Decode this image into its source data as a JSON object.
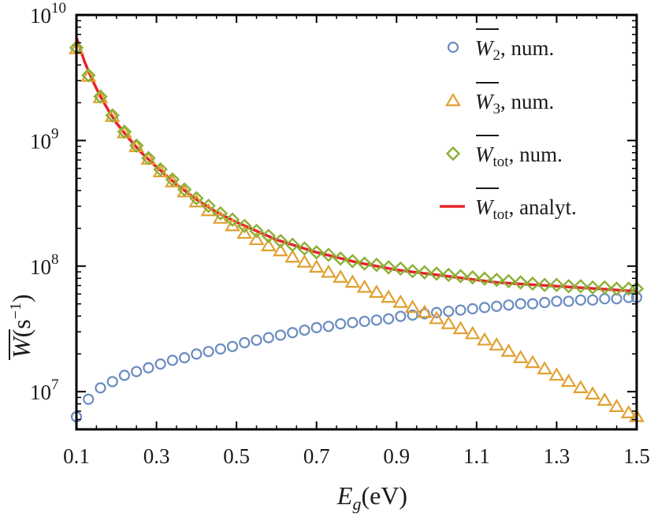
{
  "chart_data": {
    "type": "scatter",
    "xlabel": {
      "main": "E",
      "sub": "g",
      "unit": "(eV)"
    },
    "ylabel": {
      "main": "W",
      "unit": "(s",
      "exp": "−1",
      "close": ")"
    },
    "xlim": [
      0.1,
      1.5
    ],
    "ylim_log10": [
      6.7,
      10
    ],
    "x_ticks": [
      0.1,
      0.3,
      0.5,
      0.7,
      0.9,
      1.1,
      1.3,
      1.5
    ],
    "x_tick_labels": [
      "0.1",
      "0.3",
      "0.5",
      "0.7",
      "0.9",
      "1.1",
      "1.3",
      "1.5"
    ],
    "y_ticks": [
      {
        "base": "10",
        "exp": "7",
        "value": 7
      },
      {
        "base": "10",
        "exp": "8",
        "value": 8
      },
      {
        "base": "10",
        "exp": "9",
        "value": 9
      },
      {
        "base": "10",
        "exp": "10",
        "value": 10
      }
    ],
    "grid": false,
    "legend_position": "top-right",
    "series": [
      {
        "name": "W2_num",
        "legend": {
          "symbol": "W",
          "sub": "2",
          "text": ", num."
        },
        "marker": "circle",
        "color": "#6b8cbf",
        "x": [
          0.1,
          0.13,
          0.16,
          0.19,
          0.22,
          0.25,
          0.28,
          0.31,
          0.34,
          0.37,
          0.4,
          0.43,
          0.46,
          0.49,
          0.52,
          0.55,
          0.58,
          0.61,
          0.64,
          0.67,
          0.7,
          0.73,
          0.76,
          0.79,
          0.82,
          0.85,
          0.88,
          0.91,
          0.94,
          0.97,
          1.0,
          1.03,
          1.06,
          1.09,
          1.12,
          1.15,
          1.18,
          1.21,
          1.24,
          1.27,
          1.3,
          1.33,
          1.36,
          1.39,
          1.42,
          1.45,
          1.48,
          1.5
        ],
        "log10_y": [
          6.8,
          6.94,
          7.03,
          7.08,
          7.13,
          7.16,
          7.19,
          7.22,
          7.25,
          7.27,
          7.3,
          7.32,
          7.34,
          7.36,
          7.39,
          7.41,
          7.43,
          7.45,
          7.47,
          7.49,
          7.51,
          7.52,
          7.54,
          7.55,
          7.56,
          7.57,
          7.58,
          7.6,
          7.61,
          7.62,
          7.63,
          7.64,
          7.65,
          7.66,
          7.67,
          7.68,
          7.69,
          7.7,
          7.7,
          7.71,
          7.72,
          7.72,
          7.73,
          7.73,
          7.74,
          7.74,
          7.75,
          7.75
        ]
      },
      {
        "name": "W3_num",
        "legend": {
          "symbol": "W",
          "sub": "3",
          "text": ", num."
        },
        "marker": "triangle",
        "color": "#e0a030",
        "x": [
          0.1,
          0.13,
          0.16,
          0.19,
          0.22,
          0.25,
          0.28,
          0.31,
          0.34,
          0.37,
          0.4,
          0.43,
          0.46,
          0.49,
          0.52,
          0.55,
          0.58,
          0.61,
          0.64,
          0.67,
          0.7,
          0.73,
          0.76,
          0.79,
          0.82,
          0.85,
          0.88,
          0.91,
          0.94,
          0.97,
          1.0,
          1.03,
          1.06,
          1.09,
          1.12,
          1.15,
          1.18,
          1.21,
          1.24,
          1.27,
          1.3,
          1.33,
          1.36,
          1.39,
          1.42,
          1.45,
          1.48,
          1.5
        ],
        "log10_y": [
          9.73,
          9.51,
          9.34,
          9.19,
          9.06,
          8.95,
          8.85,
          8.75,
          8.67,
          8.59,
          8.51,
          8.44,
          8.38,
          8.32,
          8.26,
          8.21,
          8.16,
          8.12,
          8.07,
          8.03,
          7.99,
          7.95,
          7.91,
          7.87,
          7.83,
          7.79,
          7.75,
          7.71,
          7.67,
          7.63,
          7.58,
          7.54,
          7.5,
          7.46,
          7.41,
          7.37,
          7.32,
          7.27,
          7.23,
          7.18,
          7.13,
          7.08,
          7.03,
          6.98,
          6.93,
          6.88,
          6.83,
          6.8
        ]
      },
      {
        "name": "Wtot_num",
        "legend": {
          "symbol": "W",
          "sub": "tot",
          "text": ", num."
        },
        "marker": "diamond",
        "color": "#8bb034",
        "x": [
          0.1,
          0.13,
          0.16,
          0.19,
          0.22,
          0.25,
          0.28,
          0.31,
          0.34,
          0.37,
          0.4,
          0.43,
          0.46,
          0.49,
          0.52,
          0.55,
          0.58,
          0.61,
          0.64,
          0.67,
          0.7,
          0.73,
          0.76,
          0.79,
          0.82,
          0.85,
          0.88,
          0.91,
          0.94,
          0.97,
          1.0,
          1.03,
          1.06,
          1.09,
          1.12,
          1.15,
          1.18,
          1.21,
          1.24,
          1.27,
          1.3,
          1.33,
          1.36,
          1.39,
          1.42,
          1.45,
          1.48,
          1.5
        ],
        "log10_y": [
          9.74,
          9.52,
          9.35,
          9.2,
          9.07,
          8.96,
          8.86,
          8.77,
          8.69,
          8.61,
          8.54,
          8.48,
          8.42,
          8.37,
          8.32,
          8.28,
          8.24,
          8.2,
          8.17,
          8.14,
          8.11,
          8.09,
          8.06,
          8.04,
          8.02,
          8.01,
          7.99,
          7.98,
          7.96,
          7.95,
          7.94,
          7.93,
          7.92,
          7.91,
          7.9,
          7.89,
          7.88,
          7.87,
          7.86,
          7.85,
          7.85,
          7.84,
          7.84,
          7.83,
          7.83,
          7.82,
          7.82,
          7.82
        ]
      },
      {
        "name": "Wtot_analyt",
        "legend": {
          "symbol": "W",
          "sub": "tot",
          "text": ", analyt."
        },
        "marker": "line",
        "color": "#e8232a",
        "x": [
          0.1,
          0.12,
          0.14,
          0.16,
          0.18,
          0.2,
          0.23,
          0.26,
          0.3,
          0.35,
          0.4,
          0.45,
          0.5,
          0.55,
          0.6,
          0.65,
          0.7,
          0.75,
          0.8,
          0.85,
          0.9,
          0.95,
          1.0,
          1.05,
          1.1,
          1.15,
          1.2,
          1.25,
          1.3,
          1.35,
          1.4,
          1.45,
          1.5
        ],
        "log10_y": [
          9.82,
          9.63,
          9.48,
          9.35,
          9.24,
          9.14,
          9.02,
          8.91,
          8.79,
          8.65,
          8.53,
          8.43,
          8.35,
          8.28,
          8.21,
          8.16,
          8.11,
          8.07,
          8.03,
          8.0,
          7.97,
          7.95,
          7.93,
          7.91,
          7.89,
          7.87,
          7.86,
          7.85,
          7.84,
          7.83,
          7.82,
          7.81,
          7.8
        ]
      }
    ]
  }
}
